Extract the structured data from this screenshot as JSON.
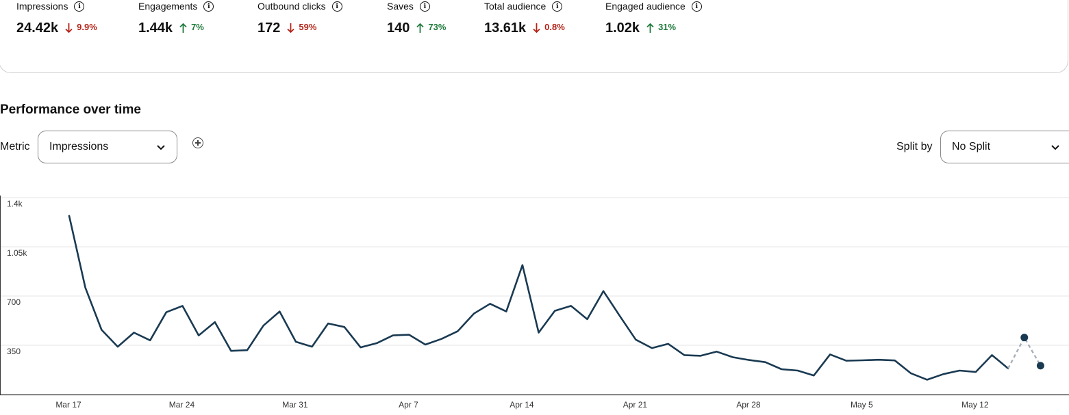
{
  "stats": [
    {
      "label": "Impressions",
      "value": "24.42k",
      "change": "9.9%",
      "direction": "down"
    },
    {
      "label": "Engagements",
      "value": "1.44k",
      "change": "7%",
      "direction": "up"
    },
    {
      "label": "Outbound clicks",
      "value": "172",
      "change": "59%",
      "direction": "down"
    },
    {
      "label": "Saves",
      "value": "140",
      "change": "73%",
      "direction": "up"
    },
    {
      "label": "Total audience",
      "value": "13.61k",
      "change": "0.8%",
      "direction": "down"
    },
    {
      "label": "Engaged audience",
      "value": "1.02k",
      "change": "31%",
      "direction": "up"
    }
  ],
  "performance": {
    "title": "Performance over time",
    "metric_label": "Metric",
    "metric_selected": "Impressions",
    "split_label": "Split by",
    "split_selected": "No Split"
  },
  "colors": {
    "line": "#1a3a52",
    "down": "#b42318",
    "up": "#1f7a3b",
    "projection": "#a6b0ba"
  },
  "chart_data": {
    "type": "line",
    "ylim": [
      0,
      1400
    ],
    "y_ticks": [
      350,
      700,
      1050,
      1400
    ],
    "y_tick_labels": [
      "350",
      "700",
      "1.05k",
      "1.4k"
    ],
    "x_tick_labels": [
      {
        "date": "Mar 17",
        "label": "Mar 17"
      },
      {
        "date": "Mar 24",
        "label": "Mar 24"
      },
      {
        "date": "Mar 31",
        "label": "Mar 31"
      },
      {
        "date": "Apr 7",
        "label": "Apr 7"
      },
      {
        "date": "Apr 14",
        "label": "Apr 14"
      },
      {
        "date": "Apr 21",
        "label": "Apr 21"
      },
      {
        "date": "Apr 28",
        "label": "Apr 28"
      },
      {
        "date": "May 5",
        "label": "May 5"
      },
      {
        "date": "May 12",
        "label": "May 12"
      }
    ],
    "series": [
      {
        "values": [
          {
            "date": "Mar 17",
            "y": 1270
          },
          {
            "date": "Mar 18",
            "y": 760
          },
          {
            "date": "Mar 19",
            "y": 460
          },
          {
            "date": "Mar 20",
            "y": 340
          },
          {
            "date": "Mar 21",
            "y": 440
          },
          {
            "date": "Mar 22",
            "y": 385
          },
          {
            "date": "Mar 23",
            "y": 585
          },
          {
            "date": "Mar 24",
            "y": 630
          },
          {
            "date": "Mar 25",
            "y": 420
          },
          {
            "date": "Mar 26",
            "y": 515
          },
          {
            "date": "Mar 27",
            "y": 310
          },
          {
            "date": "Mar 28",
            "y": 315
          },
          {
            "date": "Mar 29",
            "y": 490
          },
          {
            "date": "Mar 30",
            "y": 590
          },
          {
            "date": "Mar 31",
            "y": 375
          },
          {
            "date": "Apr 1",
            "y": 340
          },
          {
            "date": "Apr 2",
            "y": 505
          },
          {
            "date": "Apr 3",
            "y": 480
          },
          {
            "date": "Apr 4",
            "y": 335
          },
          {
            "date": "Apr 5",
            "y": 365
          },
          {
            "date": "Apr 6",
            "y": 420
          },
          {
            "date": "Apr 7",
            "y": 425
          },
          {
            "date": "Apr 8",
            "y": 355
          },
          {
            "date": "Apr 9",
            "y": 395
          },
          {
            "date": "Apr 10",
            "y": 450
          },
          {
            "date": "Apr 11",
            "y": 575
          },
          {
            "date": "Apr 12",
            "y": 645
          },
          {
            "date": "Apr 13",
            "y": 590
          },
          {
            "date": "Apr 14",
            "y": 920
          },
          {
            "date": "Apr 15",
            "y": 440
          },
          {
            "date": "Apr 16",
            "y": 595
          },
          {
            "date": "Apr 17",
            "y": 630
          },
          {
            "date": "Apr 18",
            "y": 535
          },
          {
            "date": "Apr 19",
            "y": 735
          },
          {
            "date": "Apr 20",
            "y": 560
          },
          {
            "date": "Apr 21",
            "y": 390
          },
          {
            "date": "Apr 22",
            "y": 330
          },
          {
            "date": "Apr 23",
            "y": 360
          },
          {
            "date": "Apr 24",
            "y": 280
          },
          {
            "date": "Apr 25",
            "y": 275
          },
          {
            "date": "Apr 26",
            "y": 305
          },
          {
            "date": "Apr 27",
            "y": 265
          },
          {
            "date": "Apr 28",
            "y": 245
          },
          {
            "date": "Apr 29",
            "y": 230
          },
          {
            "date": "Apr 30",
            "y": 180
          },
          {
            "date": "May 1",
            "y": 170
          },
          {
            "date": "May 2",
            "y": 135
          },
          {
            "date": "May 3",
            "y": 285
          },
          {
            "date": "May 4",
            "y": 240
          },
          {
            "date": "May 5",
            "y": 243
          },
          {
            "date": "May 6",
            "y": 247
          },
          {
            "date": "May 7",
            "y": 242
          },
          {
            "date": "May 8",
            "y": 150
          },
          {
            "date": "May 9",
            "y": 105
          },
          {
            "date": "May 10",
            "y": 145
          },
          {
            "date": "May 11",
            "y": 170
          },
          {
            "date": "May 12",
            "y": 160
          },
          {
            "date": "May 13",
            "y": 280
          },
          {
            "date": "May 14",
            "y": 185
          }
        ],
        "projection": [
          {
            "date": "May 14",
            "y": 185
          },
          {
            "date": "May 15",
            "y": 405
          },
          {
            "date": "May 16",
            "y": 205
          }
        ]
      }
    ],
    "grid": true,
    "legend": "none"
  }
}
